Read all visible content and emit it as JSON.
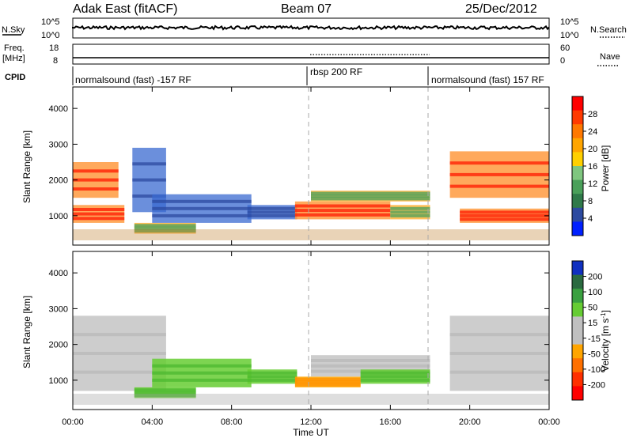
{
  "header": {
    "site": "Adak East (fitACF)",
    "beam": "Beam 07",
    "date": "25/Dec/2012"
  },
  "nsky_panel": {
    "left_label": "N.Sky",
    "left_ticks": [
      "10^5",
      "10^0"
    ],
    "right_label": "N.Search",
    "right_ticks": [
      "10^5",
      "10^0"
    ]
  },
  "freq_panel": {
    "left_label_1": "Freq.",
    "left_label_2": "[MHz]",
    "left_ticks": [
      "18",
      "8"
    ],
    "right_label": "Nave",
    "right_ticks": [
      "60",
      "0"
    ]
  },
  "cpid": {
    "label": "CPID",
    "segments": [
      "normalsound (fast) -157 RF",
      "rbsp 200 RF",
      "normalsound (fast) 157 RF"
    ]
  },
  "power_panel": {
    "ylabel": "Slant Range [km]",
    "yticks": [
      "4000",
      "3000",
      "2000",
      "1000"
    ],
    "cbar_label": "Power [dB]",
    "cbar_ticks": [
      "28",
      "24",
      "20",
      "16",
      "12",
      "8",
      "4"
    ],
    "cbar_colors": [
      "#ff0000",
      "#ff3a00",
      "#ff7800",
      "#ffa500",
      "#ffd000",
      "#7fc67f",
      "#4aa05a",
      "#2f7a4a",
      "#2c4aa0",
      "#0020ff"
    ]
  },
  "velocity_panel": {
    "ylabel": "Slant Range [km]",
    "yticks": [
      "4000",
      "3000",
      "2000",
      "1000"
    ],
    "cbar_label": "Velocity [m s",
    "cbar_sup": "-1",
    "cbar_label_end": "]",
    "cbar_ticks": [
      "200",
      "100",
      "50",
      "15",
      "-15",
      "-50",
      "-100",
      "-200"
    ],
    "cbar_colors": [
      "#1030c0",
      "#2a6a40",
      "#3aa040",
      "#66cc33",
      "#c0c0c0",
      "#c0c0c0",
      "#ffa500",
      "#ff7000",
      "#ff3000",
      "#ff0000"
    ]
  },
  "xaxis": {
    "ticks": [
      "00:00",
      "04:00",
      "08:00",
      "12:00",
      "16:00",
      "20:00",
      "00:00"
    ],
    "label": "Time UT"
  },
  "chart_data": [
    {
      "type": "heatmap",
      "title": "Adak East (fitACF) Beam 07 25/Dec/2012",
      "xlabel": "Time UT",
      "ylabel": "Slant Range [km]",
      "xlim_hours": [
        0,
        24
      ],
      "ylim_km": [
        180,
        4600
      ],
      "colorbar": "Power [dB]",
      "colorbar_ticks": [
        4,
        8,
        12,
        16,
        20,
        24,
        28
      ],
      "bands": [
        {
          "t0": 0.0,
          "t1": 2.6,
          "r0": 800,
          "r1": 1300,
          "level": "high"
        },
        {
          "t0": 0.0,
          "t1": 2.3,
          "r0": 1500,
          "r1": 2500,
          "level": "high"
        },
        {
          "t0": 3.0,
          "t1": 4.7,
          "r0": 1100,
          "r1": 2900,
          "level": "low"
        },
        {
          "t0": 3.1,
          "t1": 6.2,
          "r0": 500,
          "r1": 800,
          "level": "mid"
        },
        {
          "t0": 4.0,
          "t1": 9.0,
          "r0": 800,
          "r1": 1600,
          "level": "low"
        },
        {
          "t0": 8.8,
          "t1": 11.3,
          "r0": 900,
          "r1": 1300,
          "level": "low"
        },
        {
          "t0": 11.2,
          "t1": 16.0,
          "r0": 900,
          "r1": 1400,
          "level": "high"
        },
        {
          "t0": 12.0,
          "t1": 18.0,
          "r0": 1400,
          "r1": 1700,
          "level": "mid"
        },
        {
          "t0": 16.0,
          "t1": 18.0,
          "r0": 900,
          "r1": 1300,
          "level": "mid"
        },
        {
          "t0": 19.5,
          "t1": 24.0,
          "r0": 800,
          "r1": 1200,
          "level": "high"
        },
        {
          "t0": 19.0,
          "t1": 24.0,
          "r0": 1500,
          "r1": 2800,
          "level": "high"
        }
      ]
    },
    {
      "type": "heatmap",
      "xlabel": "Time UT",
      "ylabel": "Slant Range [km]",
      "xlim_hours": [
        0,
        24
      ],
      "ylim_km": [
        180,
        4600
      ],
      "colorbar": "Velocity [m s-1]",
      "colorbar_ticks": [
        -200,
        -100,
        -50,
        -15,
        15,
        50,
        100,
        200
      ],
      "bands": [
        {
          "t0": 0.0,
          "t1": 4.7,
          "r0": 700,
          "r1": 2800,
          "level": "grey"
        },
        {
          "t0": 4.0,
          "t1": 9.0,
          "r0": 800,
          "r1": 1600,
          "level": "green"
        },
        {
          "t0": 3.1,
          "t1": 6.2,
          "r0": 500,
          "r1": 800,
          "level": "green"
        },
        {
          "t0": 8.8,
          "t1": 11.3,
          "r0": 900,
          "r1": 1300,
          "level": "green"
        },
        {
          "t0": 11.2,
          "t1": 14.5,
          "r0": 800,
          "r1": 1100,
          "level": "orange"
        },
        {
          "t0": 12.0,
          "t1": 18.0,
          "r0": 1100,
          "r1": 1700,
          "level": "grey"
        },
        {
          "t0": 14.5,
          "t1": 18.0,
          "r0": 900,
          "r1": 1300,
          "level": "green"
        },
        {
          "t0": 19.0,
          "t1": 24.0,
          "r0": 700,
          "r1": 2800,
          "level": "grey"
        }
      ]
    }
  ]
}
